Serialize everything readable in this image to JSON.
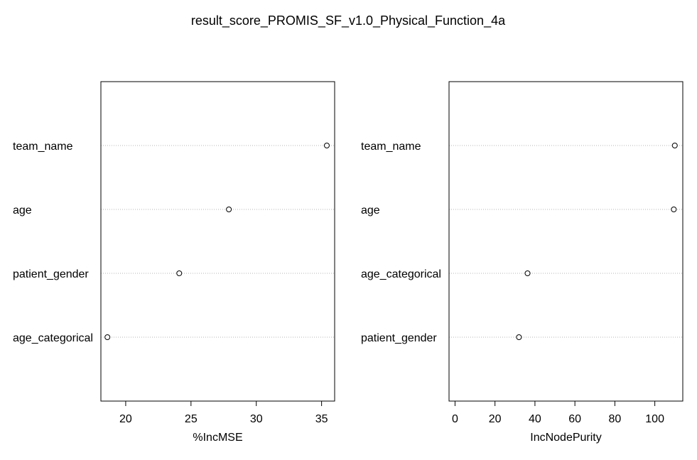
{
  "title": "result_score_PROMIS_SF_v1.0_Physical_Function_4a",
  "chart_data": [
    {
      "type": "scatter",
      "subtype": "dotchart",
      "xlabel": "%IncMSE",
      "categories": [
        "team_name",
        "age",
        "patient_gender",
        "age_categorical"
      ],
      "values": [
        35.4,
        27.9,
        24.1,
        18.6
      ],
      "xlim": [
        18.1,
        36.0
      ],
      "xticks": [
        20,
        25,
        30,
        35
      ],
      "grid": "dotted horizontal guide lines",
      "point_marker": "open circle"
    },
    {
      "type": "scatter",
      "subtype": "dotchart",
      "xlabel": "IncNodePurity",
      "categories": [
        "team_name",
        "age",
        "age_categorical",
        "patient_gender"
      ],
      "values": [
        110.0,
        109.5,
        36.3,
        32.0
      ],
      "xlim": [
        -3,
        114
      ],
      "xticks": [
        0,
        20,
        40,
        60,
        80,
        100
      ],
      "grid": "dotted horizontal guide lines",
      "point_marker": "open circle"
    }
  ]
}
